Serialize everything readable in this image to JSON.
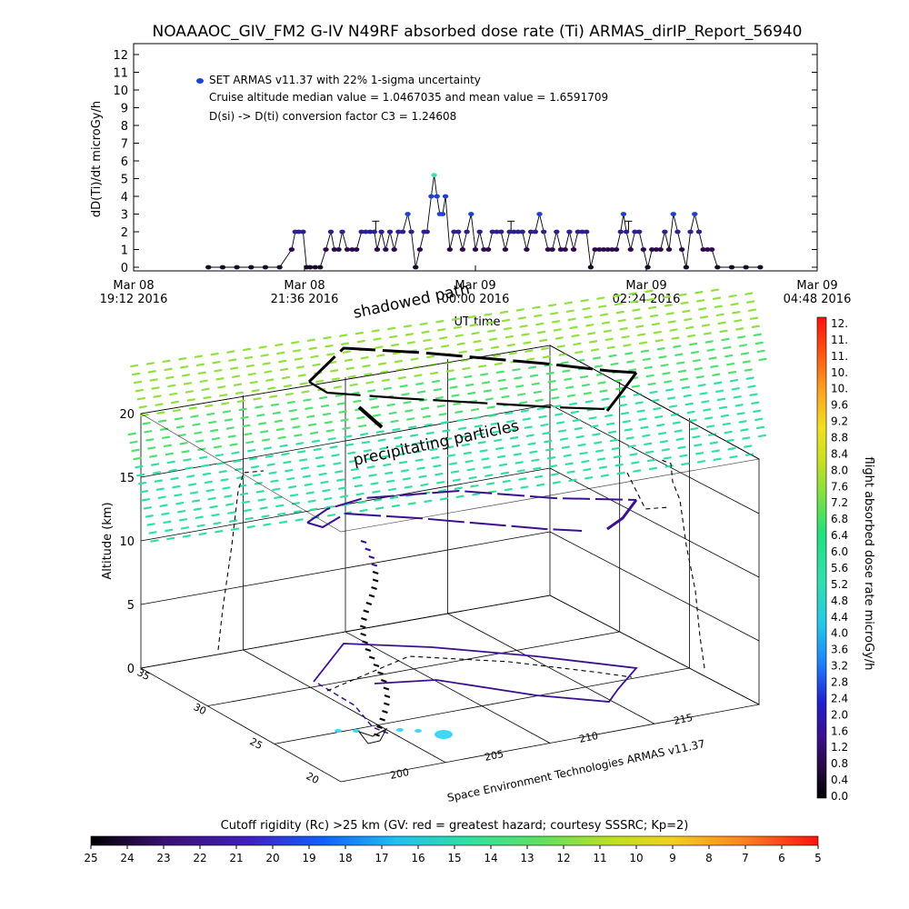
{
  "title": "NOAAAOC_GIV_FM2 G-IV    N49RF  absorbed dose rate (Ti) ARMAS_dirIP_Report_56940",
  "top_plot": {
    "legend_marker_label": "SET ARMAS v11.37 with 22% 1-sigma uncertainty",
    "legend_line2": "Cruise altitude median value = 1.0467035 and mean value = 1.6591709",
    "legend_line3": "D(si) -> D(ti) conversion factor C3 = 1.24608",
    "xlabel": "UT time",
    "ylabel": "dD(Ti)/dt microGy/h"
  },
  "annotations": {
    "shadowed_path": "shadowed path",
    "precipitating_particles": "precipitating particles",
    "credit": "Space Environment Technologies ARMAS v11.37"
  },
  "plot3d": {
    "zlabel": "Altitude (km)",
    "z_ticks": [
      "0",
      "5",
      "10",
      "15",
      "20"
    ],
    "y_ticks": [
      "35",
      "30",
      "25",
      "20"
    ],
    "x_ticks": [
      "200",
      "205",
      "210",
      "215"
    ]
  },
  "colorbar_right": {
    "label": "flight absorbed dose rate microGy/h",
    "ticks": [
      "12.",
      "11.",
      "11.",
      "10.",
      "10.",
      "9.6",
      "9.2",
      "8.8",
      "8.4",
      "8.0",
      "7.6",
      "7.2",
      "6.8",
      "6.4",
      "6.0",
      "5.6",
      "5.2",
      "4.8",
      "4.4",
      "4.0",
      "3.6",
      "3.2",
      "2.8",
      "2.4",
      "2.0",
      "1.6",
      "1.2",
      "0.8",
      "0.4",
      "0.0"
    ]
  },
  "colorbar_bottom": {
    "label": "Cutoff rigidity (Rc) >25 km (GV: red = greatest hazard; courtesy SSSRC; Kp=2)",
    "ticks": [
      "25",
      "24",
      "23",
      "22",
      "21",
      "20",
      "19",
      "18",
      "17",
      "16",
      "15",
      "14",
      "13",
      "12",
      "11",
      "10",
      "9",
      "8",
      "7",
      "6",
      "5"
    ]
  },
  "colors": {
    "low_dose": "#2a0a4a",
    "mid_dose": "#1e3ccc",
    "peak_dose": "#40e0b0",
    "marker_blue": "#2040d0"
  },
  "chart_data": {
    "type": "scatter",
    "title": "NOAAAOC_GIV_FM2 G-IV    N49RF  absorbed dose rate (Ti) ARMAS_dirIP_Report_56940",
    "xlabel": "UT time",
    "ylabel": "dD(Ti)/dt microGy/h",
    "ylim": [
      0,
      12
    ],
    "x_tick_labels": [
      [
        "Mar 08",
        "19:12 2016"
      ],
      [
        "Mar 08",
        "21:36 2016"
      ],
      [
        "Mar 09",
        "00:00 2016"
      ],
      [
        "Mar 09",
        "02:24 2016"
      ],
      [
        "Mar 09",
        "04:48 2016"
      ]
    ],
    "xlim_hours": [
      19.2,
      28.8
    ],
    "y_ticks": [
      "0",
      "1",
      "2",
      "3",
      "4",
      "5",
      "6",
      "7",
      "8",
      "9",
      "10",
      "11",
      "12"
    ],
    "series": [
      {
        "name": "SET ARMAS v11.37 with 22% 1-sigma uncertainty",
        "points": [
          [
            20.25,
            0
          ],
          [
            20.45,
            0
          ],
          [
            20.65,
            0
          ],
          [
            20.85,
            0
          ],
          [
            21.05,
            0
          ],
          [
            21.25,
            0
          ],
          [
            21.42,
            1
          ],
          [
            21.47,
            2
          ],
          [
            21.52,
            2
          ],
          [
            21.58,
            2
          ],
          [
            21.63,
            0
          ],
          [
            21.68,
            0
          ],
          [
            21.75,
            0
          ],
          [
            21.82,
            0
          ],
          [
            21.9,
            1
          ],
          [
            21.97,
            2
          ],
          [
            22.02,
            1
          ],
          [
            22.08,
            1
          ],
          [
            22.13,
            2
          ],
          [
            22.2,
            1
          ],
          [
            22.27,
            1
          ],
          [
            22.33,
            1
          ],
          [
            22.4,
            2
          ],
          [
            22.46,
            2
          ],
          [
            22.52,
            2
          ],
          [
            22.58,
            2
          ],
          [
            22.62,
            1
          ],
          [
            22.68,
            2
          ],
          [
            22.74,
            1
          ],
          [
            22.8,
            2
          ],
          [
            22.86,
            1
          ],
          [
            22.92,
            2
          ],
          [
            22.98,
            2
          ],
          [
            23.05,
            3
          ],
          [
            23.1,
            2
          ],
          [
            23.16,
            0
          ],
          [
            23.22,
            1
          ],
          [
            23.28,
            2
          ],
          [
            23.32,
            2
          ],
          [
            23.38,
            4
          ],
          [
            23.42,
            5.2
          ],
          [
            23.46,
            4
          ],
          [
            23.5,
            3
          ],
          [
            23.54,
            3
          ],
          [
            23.58,
            4
          ],
          [
            23.64,
            1
          ],
          [
            23.7,
            2
          ],
          [
            23.76,
            2
          ],
          [
            23.82,
            1
          ],
          [
            23.88,
            2
          ],
          [
            23.94,
            3
          ],
          [
            24.0,
            1
          ],
          [
            24.06,
            2
          ],
          [
            24.12,
            1
          ],
          [
            24.18,
            1
          ],
          [
            24.24,
            2
          ],
          [
            24.3,
            2
          ],
          [
            24.36,
            2
          ],
          [
            24.42,
            1
          ],
          [
            24.48,
            2
          ],
          [
            24.54,
            2
          ],
          [
            24.6,
            2
          ],
          [
            24.66,
            2
          ],
          [
            24.72,
            1
          ],
          [
            24.78,
            2
          ],
          [
            24.84,
            2
          ],
          [
            24.9,
            3
          ],
          [
            24.96,
            2
          ],
          [
            25.02,
            1
          ],
          [
            25.08,
            1
          ],
          [
            25.14,
            2
          ],
          [
            25.2,
            1
          ],
          [
            25.26,
            1
          ],
          [
            25.32,
            2
          ],
          [
            25.38,
            1
          ],
          [
            25.44,
            2
          ],
          [
            25.5,
            2
          ],
          [
            25.56,
            2
          ],
          [
            25.62,
            0
          ],
          [
            25.68,
            1
          ],
          [
            25.74,
            1
          ],
          [
            25.8,
            1
          ],
          [
            25.86,
            1
          ],
          [
            25.92,
            1
          ],
          [
            25.98,
            1
          ],
          [
            26.04,
            2
          ],
          [
            26.08,
            3
          ],
          [
            26.12,
            2
          ],
          [
            26.18,
            1
          ],
          [
            26.24,
            2
          ],
          [
            26.3,
            2
          ],
          [
            26.36,
            1
          ],
          [
            26.42,
            0
          ],
          [
            26.48,
            1
          ],
          [
            26.54,
            1
          ],
          [
            26.6,
            1
          ],
          [
            26.66,
            2
          ],
          [
            26.72,
            1
          ],
          [
            26.78,
            3
          ],
          [
            26.84,
            2
          ],
          [
            26.9,
            1
          ],
          [
            26.96,
            0
          ],
          [
            27.02,
            2
          ],
          [
            27.08,
            3
          ],
          [
            27.14,
            2
          ],
          [
            27.2,
            1
          ],
          [
            27.26,
            1
          ],
          [
            27.32,
            1
          ],
          [
            27.4,
            0
          ],
          [
            27.6,
            0
          ],
          [
            27.8,
            0
          ],
          [
            28.0,
            0
          ]
        ]
      }
    ],
    "error_bars": [
      [
        22.6,
        2.0,
        2.6
      ],
      [
        24.5,
        2.0,
        2.6
      ],
      [
        26.15,
        2.0,
        2.6
      ]
    ]
  }
}
